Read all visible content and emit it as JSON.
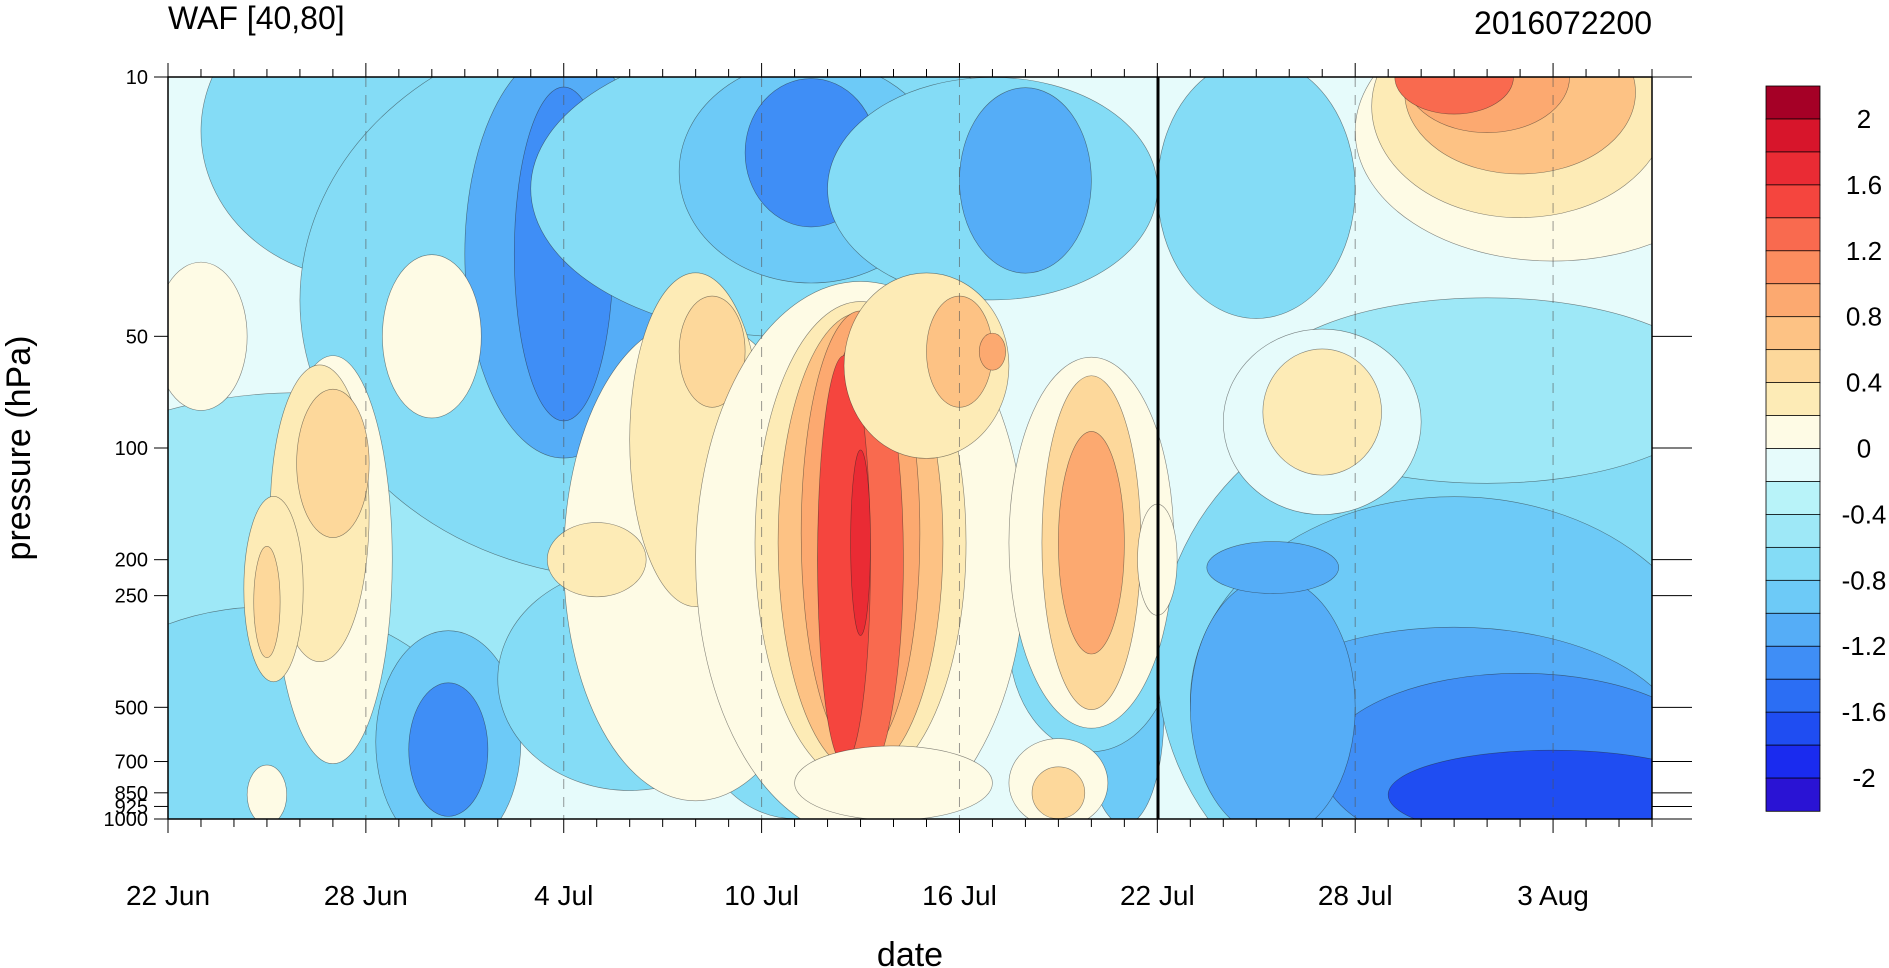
{
  "chart_data": {
    "type": "heatmap",
    "title": "WAF [40,80]",
    "right_title": "2016072200",
    "xlabel": "date",
    "ylabel": "pressure (hPa)",
    "x_tick_labels": [
      "22 Jun",
      "28 Jun",
      "4 Jul",
      "10 Jul",
      "16 Jul",
      "22 Jul",
      "28 Jul",
      "3 Aug"
    ],
    "x_range_days": [
      0,
      45
    ],
    "x_major_days": [
      0,
      6,
      12,
      18,
      24,
      30,
      36,
      42
    ],
    "y_tick_labels": [
      "10",
      "50",
      "100",
      "200",
      "250",
      "500",
      "700",
      "850",
      "925",
      "1000"
    ],
    "y_tick_values": [
      10,
      50,
      100,
      200,
      250,
      500,
      700,
      850,
      925,
      1000
    ],
    "y_scale": "log",
    "y_range": [
      10,
      1000
    ],
    "marker_date": "22 Jul",
    "colorbar": {
      "tick_labels": [
        "2",
        "1.6",
        "1.2",
        "0.8",
        "0.4",
        "0",
        "-0.4",
        "-0.8",
        "-1.2",
        "-1.6",
        "-2"
      ],
      "levels_top_to_bottom": [
        2.2,
        2.0,
        1.8,
        1.6,
        1.4,
        1.2,
        1.0,
        0.8,
        0.6,
        0.4,
        0.2,
        0.0,
        -0.2,
        -0.4,
        -0.6,
        -0.8,
        -1.0,
        -1.2,
        -1.4,
        -1.6,
        -1.8,
        -2.0,
        -2.2
      ],
      "colors": [
        "#a50026",
        "#d7152b",
        "#ea2b34",
        "#f5453e",
        "#f96a4f",
        "#fc8d5f",
        "#fca970",
        "#fdc284",
        "#fdd89b",
        "#fdebb6",
        "#fefbe5",
        "#e6fbfb",
        "#b8f3f9",
        "#9ee8f7",
        "#84dcf6",
        "#6dcaf7",
        "#55adf7",
        "#3f8ef6",
        "#2b6ef4",
        "#1f4df2",
        "#1a2bef",
        "#2a13d4"
      ]
    },
    "grid": false,
    "legend": "colorbar-right"
  }
}
